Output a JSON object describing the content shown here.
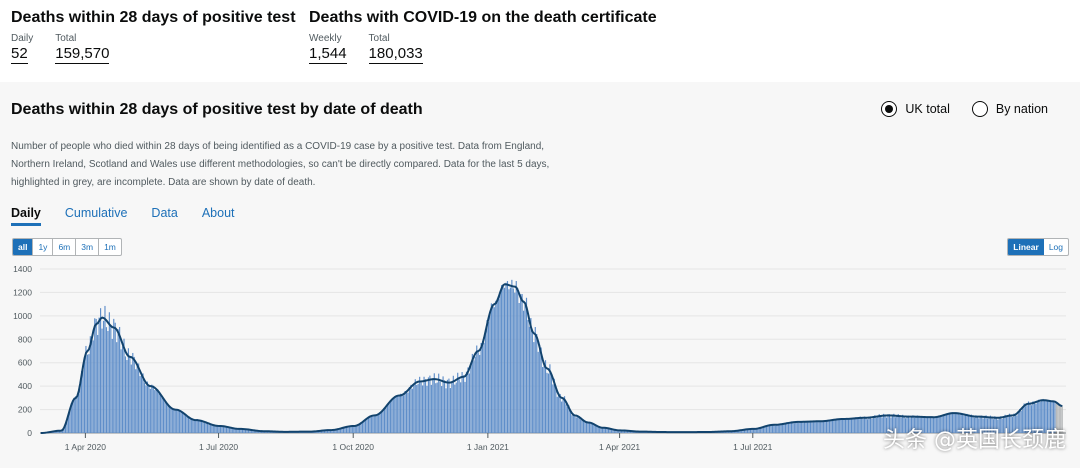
{
  "headline": {
    "deaths28": {
      "title": "Deaths within 28 days of positive test",
      "daily_label": "Daily",
      "daily_value": "52",
      "total_label": "Total",
      "total_value": "159,570"
    },
    "certificate": {
      "title": "Deaths with COVID-19 on the death certificate",
      "weekly_label": "Weekly",
      "weekly_value": "1,544",
      "total_label": "Total",
      "total_value": "180,033"
    }
  },
  "card": {
    "title": "Deaths within 28 days of positive test by date of death",
    "radio": {
      "uk_total": "UK total",
      "by_nation": "By nation",
      "selected": "uk_total"
    },
    "description": "Number of people who died within 28 days of being identified as a COVID-19 case by a positive test. Data from England, Northern Ireland, Scotland and Wales use different methodologies, so can't be directly compared. Data for the last 5 days, highlighted in grey, are incomplete. Data are shown by date of death.",
    "tabs": [
      "Daily",
      "Cumulative",
      "Data",
      "About"
    ],
    "active_tab": "Daily",
    "range_buttons": [
      "all",
      "1y",
      "6m",
      "3m",
      "1m"
    ],
    "active_range": "all",
    "scale_buttons": [
      "Linear",
      "Log"
    ],
    "active_scale": "Linear"
  },
  "watermark": "头条 @英国长颈鹿",
  "colors": {
    "bar": "#5f8ec9",
    "line": "#12436d",
    "incomplete": "#b1b4b6",
    "link": "#1d70b8"
  },
  "chart_data": {
    "type": "bar",
    "y_ticks": [
      0,
      200,
      400,
      600,
      800,
      1000,
      1200,
      1400
    ],
    "ylim": [
      0,
      1400
    ],
    "x_tick_labels": [
      "1 Apr 2020",
      "1 Jul 2020",
      "1 Oct 2020",
      "1 Jan 2021",
      "1 Apr 2021",
      "1 Jul 2021"
    ],
    "series": [
      {
        "x": [
          "2020-03-01",
          "2020-03-15",
          "2020-03-25",
          "2020-04-02",
          "2020-04-08",
          "2020-04-12",
          "2020-04-20",
          "2020-05-01",
          "2020-05-15",
          "2020-06-01",
          "2020-06-15",
          "2020-07-01",
          "2020-07-15",
          "2020-08-01",
          "2020-08-15",
          "2020-09-01",
          "2020-09-15",
          "2020-10-01",
          "2020-10-15",
          "2020-11-01",
          "2020-11-15",
          "2020-11-25",
          "2020-12-05",
          "2020-12-15",
          "2020-12-25",
          "2021-01-05",
          "2021-01-12",
          "2021-01-19",
          "2021-01-25",
          "2021-02-01",
          "2021-02-10",
          "2021-02-20",
          "2021-03-01",
          "2021-03-10",
          "2021-03-20",
          "2021-04-01",
          "2021-04-15",
          "2021-05-01",
          "2021-05-15",
          "2021-06-01",
          "2021-06-15",
          "2021-07-01",
          "2021-07-15",
          "2021-08-01",
          "2021-08-15",
          "2021-09-01",
          "2021-09-15",
          "2021-10-01",
          "2021-10-15",
          "2021-11-01",
          "2021-11-15",
          "2021-12-01",
          "2021-12-15",
          "2021-12-25",
          "2022-01-05",
          "2022-01-15",
          "2022-01-22",
          "2022-01-28"
        ],
        "values": [
          0,
          20,
          300,
          700,
          930,
          985,
          900,
          650,
          400,
          200,
          110,
          60,
          35,
          15,
          10,
          12,
          25,
          60,
          150,
          320,
          440,
          460,
          430,
          480,
          700,
          1100,
          1270,
          1250,
          1120,
          850,
          550,
          300,
          150,
          90,
          45,
          22,
          12,
          8,
          7,
          9,
          15,
          35,
          70,
          95,
          100,
          120,
          130,
          150,
          140,
          135,
          170,
          140,
          130,
          150,
          250,
          280,
          270,
          230
        ]
      }
    ]
  }
}
